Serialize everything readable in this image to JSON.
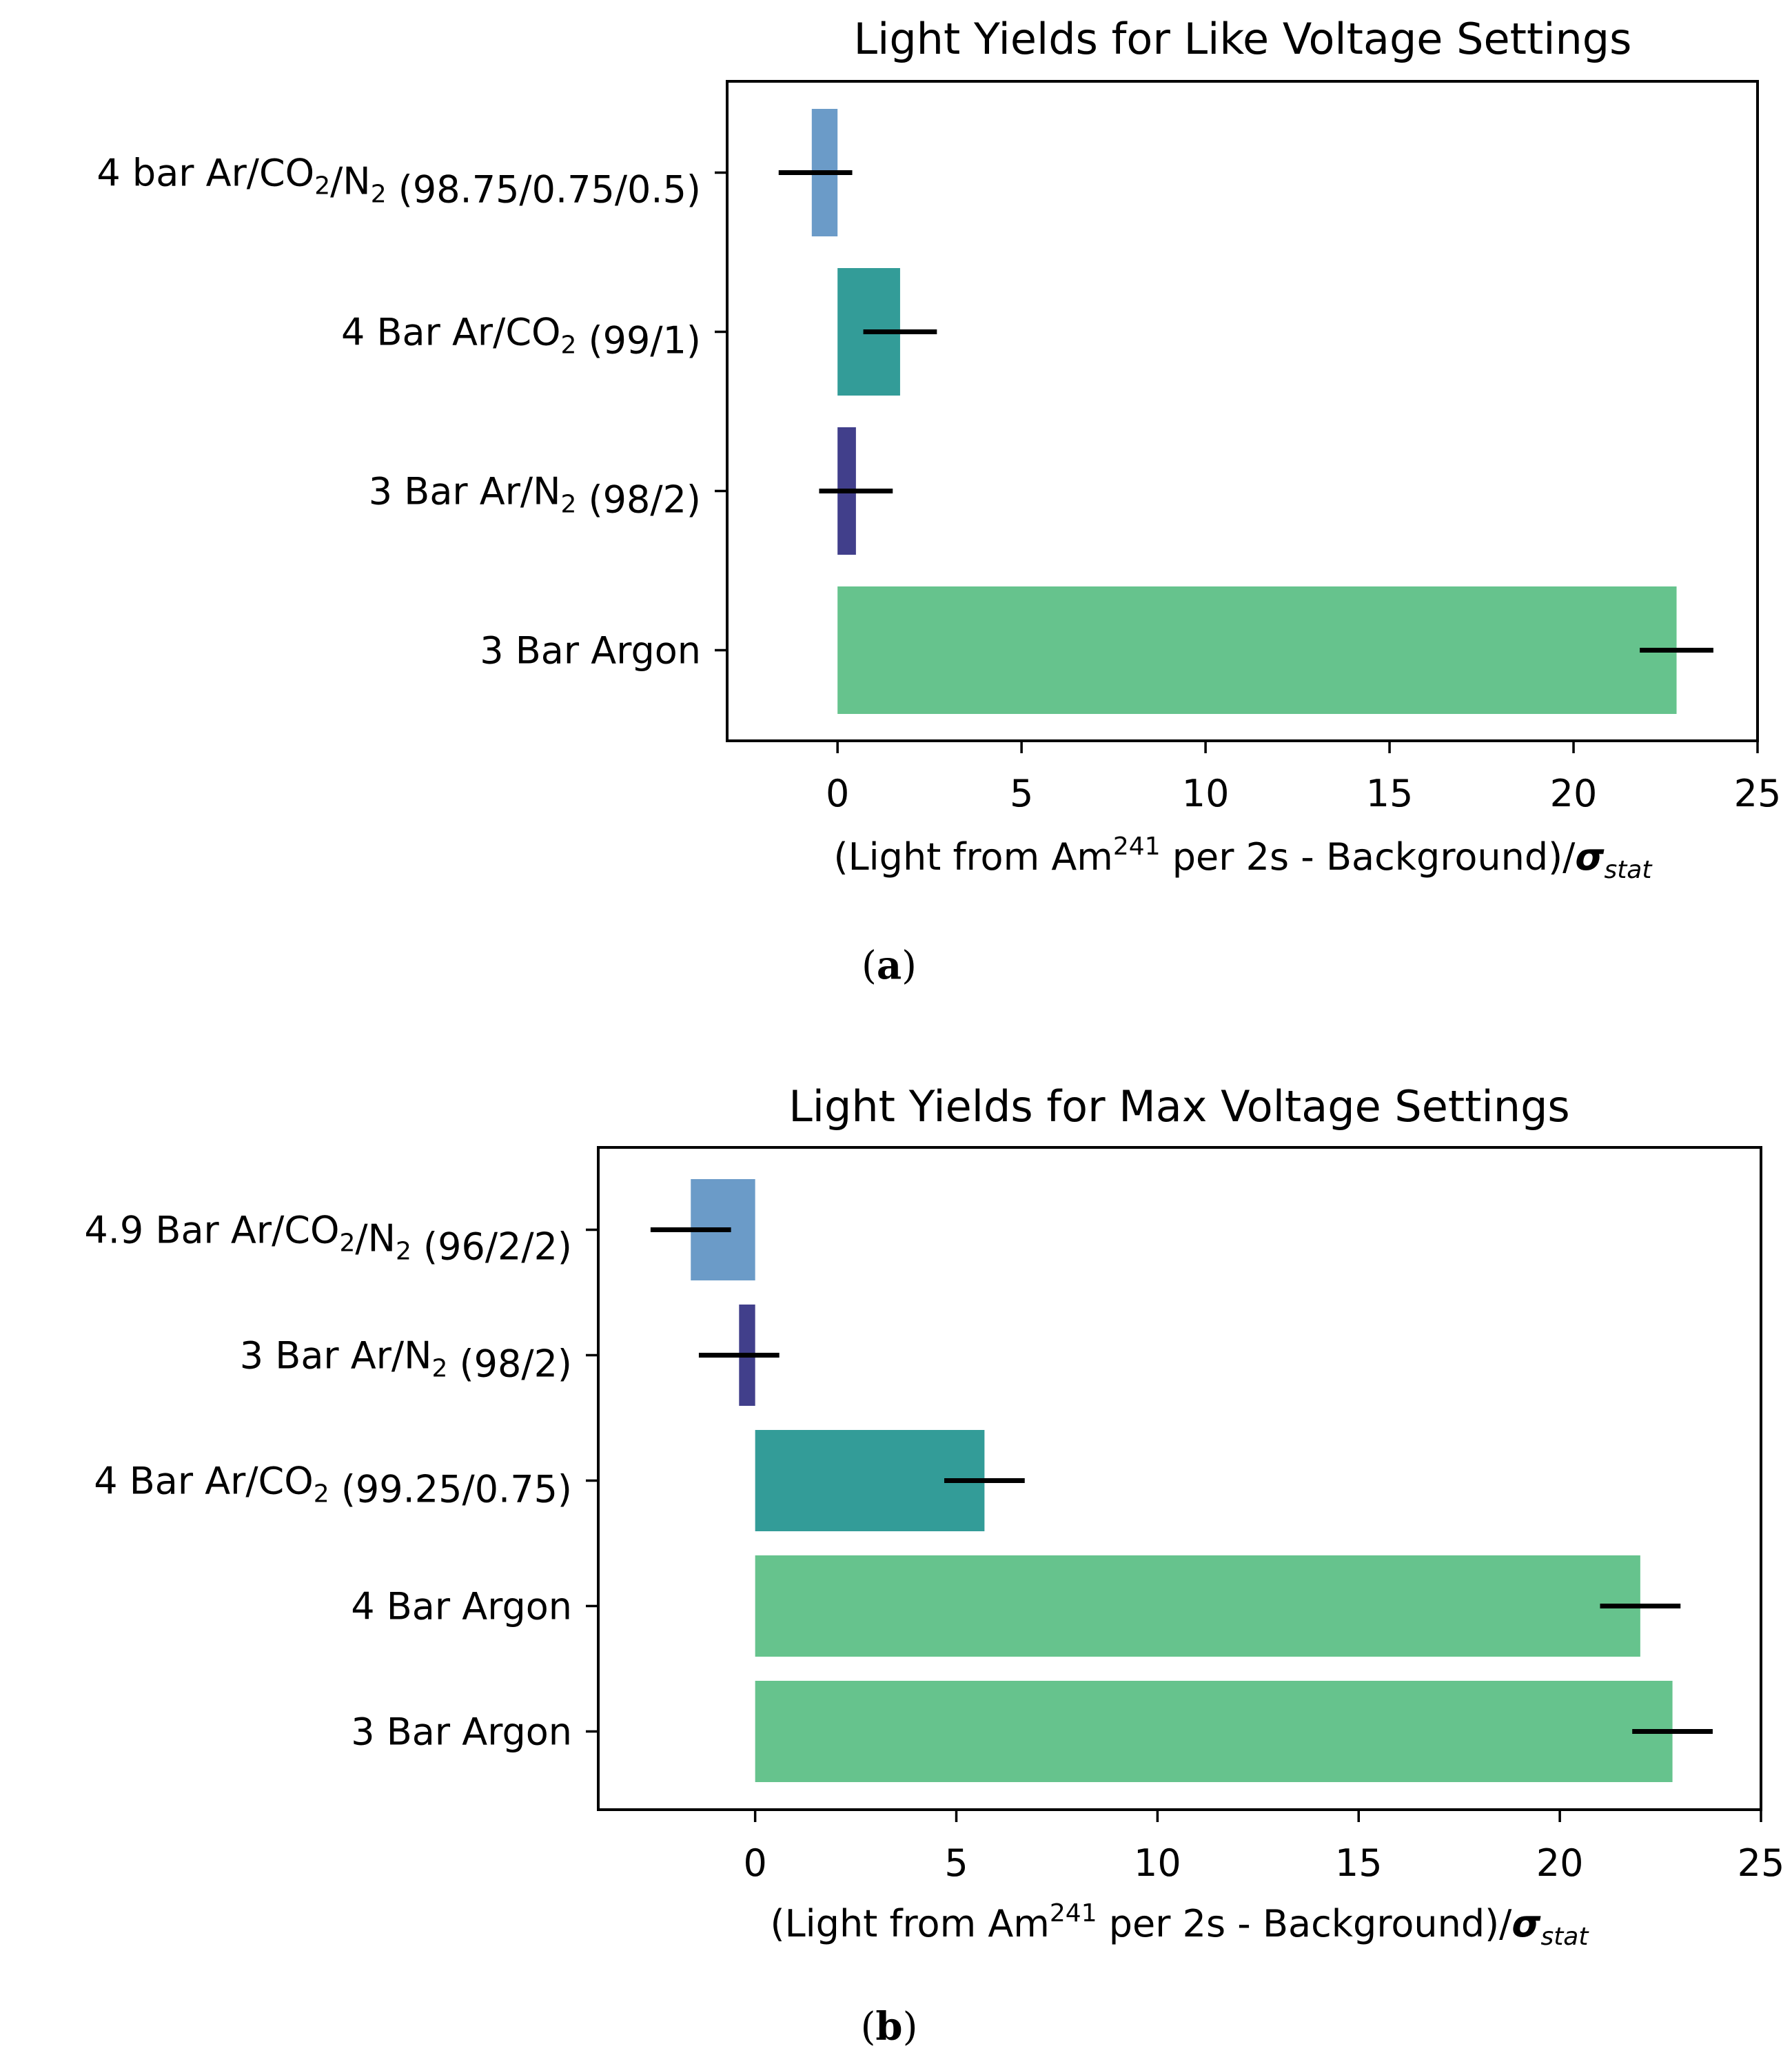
{
  "chart_data": [
    {
      "type": "bar",
      "orientation": "horizontal",
      "title": "Light Yields for Like Voltage Settings",
      "xlabel": {
        "prefix": "(Light from Am",
        "sup": "241",
        "middle": " per 2s - Background)/",
        "symbol": "σ",
        "symbol_sub": "stat"
      },
      "xlim": [
        -3,
        25
      ],
      "xticks": [
        0,
        5,
        10,
        15,
        20,
        25
      ],
      "caption": {
        "open": "(",
        "letter": "a",
        "close": ")"
      },
      "bars": [
        {
          "label": [
            {
              "t": "4 bar Ar/CO"
            },
            {
              "t": "2",
              "sub": true
            },
            {
              "t": "/N"
            },
            {
              "t": "2",
              "sub": true
            },
            {
              "t": " (98.75/0.75/0.5)"
            }
          ],
          "value": -0.7,
          "error_center": -0.6,
          "error": 1.0,
          "color": "#6b9bc8"
        },
        {
          "label": [
            {
              "t": "4 Bar Ar/CO"
            },
            {
              "t": "2",
              "sub": true
            },
            {
              "t": " (99/1)"
            }
          ],
          "value": 1.7,
          "error_center": 1.7,
          "error": 1.0,
          "color": "#339c98"
        },
        {
          "label": [
            {
              "t": "3 Bar Ar/N"
            },
            {
              "t": "2",
              "sub": true
            },
            {
              "t": " (98/2)"
            }
          ],
          "value": 0.5,
          "error_center": 0.5,
          "error": 1.0,
          "color": "#413f8b"
        },
        {
          "label": [
            {
              "t": "3 Bar Argon"
            }
          ],
          "value": 22.8,
          "error_center": 22.8,
          "error": 1.0,
          "color": "#66c38d"
        }
      ]
    },
    {
      "type": "bar",
      "orientation": "horizontal",
      "title": "Light Yields for Max Voltage Settings",
      "xlabel": {
        "prefix": "(Light from Am",
        "sup": "241",
        "middle": " per 2s - Background)/",
        "symbol": "σ",
        "symbol_sub": "stat"
      },
      "xlim": [
        -3.9,
        25
      ],
      "xticks": [
        0,
        5,
        10,
        15,
        20,
        25
      ],
      "caption": {
        "open": "(",
        "letter": "b",
        "close": ")"
      },
      "bars": [
        {
          "label": [
            {
              "t": "4.9 Bar Ar/CO"
            },
            {
              "t": "2",
              "sub": true
            },
            {
              "t": "/N"
            },
            {
              "t": "2",
              "sub": true
            },
            {
              "t": " (96/2/2)"
            }
          ],
          "value": -1.6,
          "error_center": -1.6,
          "error": 1.0,
          "color": "#6b9bc8"
        },
        {
          "label": [
            {
              "t": "3 Bar Ar/N"
            },
            {
              "t": "2",
              "sub": true
            },
            {
              "t": " (98/2)"
            }
          ],
          "value": -0.4,
          "error_center": -0.4,
          "error": 1.0,
          "color": "#413f8b"
        },
        {
          "label": [
            {
              "t": "4 Bar Ar/CO"
            },
            {
              "t": "2",
              "sub": true
            },
            {
              "t": " (99.25/0.75)"
            }
          ],
          "value": 5.7,
          "error_center": 5.7,
          "error": 1.0,
          "color": "#339c98"
        },
        {
          "label": [
            {
              "t": "4 Bar Argon"
            }
          ],
          "value": 22.0,
          "error_center": 22.0,
          "error": 1.0,
          "color": "#66c38d"
        },
        {
          "label": [
            {
              "t": "3 Bar Argon"
            }
          ],
          "value": 22.8,
          "error_center": 22.8,
          "error": 1.0,
          "color": "#66c38d"
        }
      ]
    }
  ]
}
